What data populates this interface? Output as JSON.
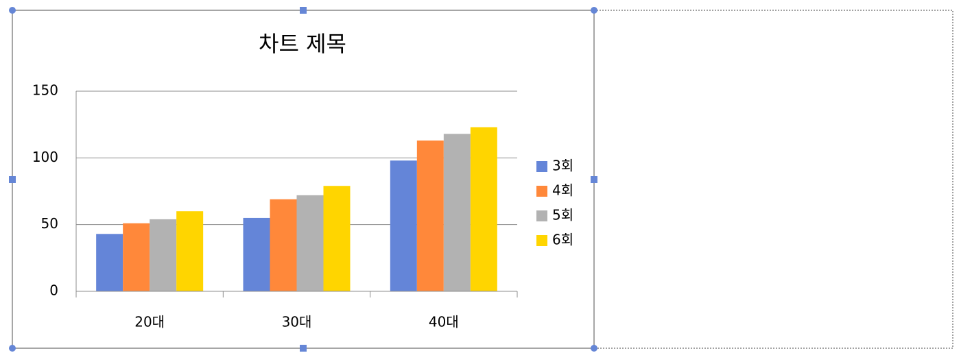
{
  "chart_data": {
    "type": "bar",
    "title": "차트 제목",
    "categories": [
      "20대",
      "30대",
      "40대"
    ],
    "series": [
      {
        "name": "3회",
        "color": "#6485d8",
        "values": [
          43,
          55,
          98
        ]
      },
      {
        "name": "4회",
        "color": "#ff883a",
        "values": [
          51,
          69,
          113
        ]
      },
      {
        "name": "5회",
        "color": "#b2b2b2",
        "values": [
          54,
          72,
          118
        ]
      },
      {
        "name": "6회",
        "color": "#ffd500",
        "values": [
          60,
          79,
          123
        ]
      }
    ],
    "ylim": [
      0,
      150
    ],
    "yticks": [
      0,
      50,
      100,
      150
    ],
    "grid": true,
    "legend": "right"
  }
}
